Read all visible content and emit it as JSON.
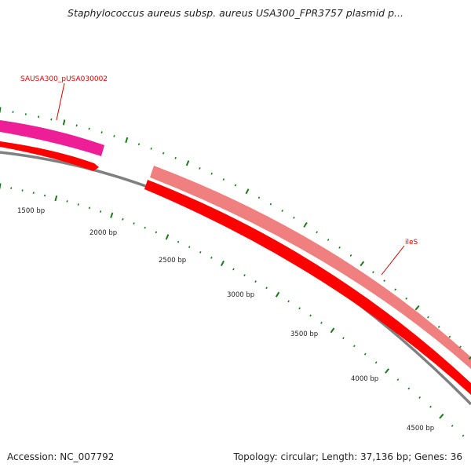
{
  "title": "Staphylococcus aureus subsp. aureus USA300_FPR3757 plasmid p...",
  "footer": {
    "accession": "Accession: NC_007792",
    "summary": "Topology: circular; Length: 37,136 bp; Genes: 36"
  },
  "ruler": {
    "labels": [
      "1500 bp",
      "2000 bp",
      "2500 bp",
      "3000 bp",
      "3500 bp",
      "4000 bp",
      "4500 bp"
    ]
  },
  "features": [
    {
      "name": "SAUSA300_pUSA030002",
      "color": "#e8198c"
    },
    {
      "name": "ileS",
      "color": "#dd0000"
    }
  ],
  "colors": {
    "backbone": "#808080",
    "cds_dark": "#ff0000",
    "cds_light": "#f08080",
    "gene_magenta": "#ee1e96",
    "ticks": "#1a7a1a",
    "label": "#dd0000"
  }
}
